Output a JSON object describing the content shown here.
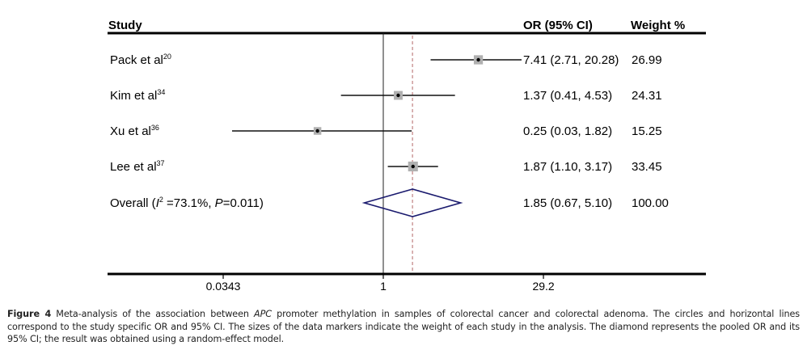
{
  "chart_data": {
    "type": "forest",
    "scale": "log",
    "columns": {
      "study": "Study",
      "or_ci": "OR (95% CI)",
      "weight": "Weight %"
    },
    "studies": [
      {
        "name": "Pack et al",
        "ref": "20",
        "or": 7.41,
        "ci_low": 2.71,
        "ci_high": 20.28,
        "or_text": "7.41 (2.71, 20.28)",
        "weight": 26.99,
        "weight_text": "26.99"
      },
      {
        "name": "Kim et al",
        "ref": "34",
        "or": 1.37,
        "ci_low": 0.41,
        "ci_high": 4.53,
        "or_text": "1.37 (0.41, 4.53)",
        "weight": 24.31,
        "weight_text": "24.31"
      },
      {
        "name": "Xu et al",
        "ref": "36",
        "or": 0.25,
        "ci_low": 0.03,
        "ci_high": 1.82,
        "or_text": "0.25 (0.03, 1.82)",
        "weight": 15.25,
        "weight_text": "15.25"
      },
      {
        "name": "Lee et al",
        "ref": "37",
        "or": 1.87,
        "ci_low": 1.1,
        "ci_high": 3.17,
        "or_text": "1.87 (1.10, 3.17)",
        "weight": 33.45,
        "weight_text": "33.45"
      }
    ],
    "overall": {
      "label_prefix": "Overall (",
      "i2_symbol": "I",
      "i2_sup": "2",
      "i2_text": " =73.1%, ",
      "p_symbol": "P",
      "p_text": "=0.011)",
      "or": 1.85,
      "ci_low": 0.67,
      "ci_high": 5.1,
      "or_text": "1.85 (0.67, 5.10)",
      "weight_text": "100.00"
    },
    "null_value": 1,
    "x_ticks": [
      0.0343,
      1,
      29.2
    ],
    "x_tick_labels": [
      "0.0343",
      "1",
      "29.2"
    ],
    "xlim": [
      0.0343,
      29.2
    ],
    "colors": {
      "ci_line": "#111111",
      "marker_box": "#b0b0b0",
      "diamond": "#1a1a6e",
      "pooled_line": "#c48a8a",
      "null_line": "#222222"
    }
  },
  "caption": {
    "figure_label": "Figure 4",
    "text_1": " Meta-analysis of the association between ",
    "gene": "APC",
    "text_2": " promoter methylation in samples of colorectal cancer and colorectal adenoma. The circles and horizontal lines correspond to the study specific OR and 95% CI. The sizes of the data markers indicate the weight of each study in the analysis. The diamond represents the pooled OR and its 95% CI; the result was obtained using a random-effect model."
  }
}
